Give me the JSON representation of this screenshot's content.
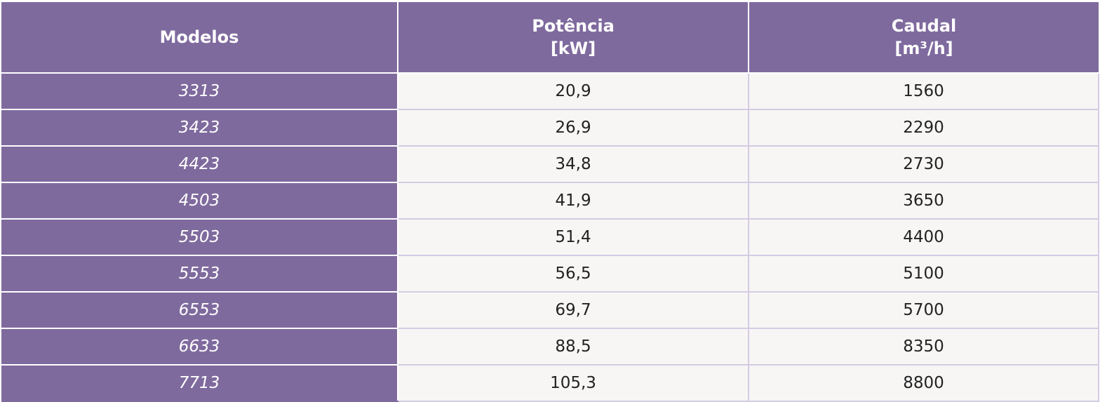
{
  "table": {
    "header": [
      {
        "title": "Modelos"
      },
      {
        "title": "Potência",
        "unit": "[kW]"
      },
      {
        "title": "Caudal",
        "unit": "[m³/h]"
      }
    ],
    "rows": [
      [
        "3313",
        "20,9",
        "1560"
      ],
      [
        "3423",
        "26,9",
        "2290"
      ],
      [
        "4423",
        "34,8",
        "2730"
      ],
      [
        "4503",
        "41,9",
        "3650"
      ],
      [
        "5503",
        "51,4",
        "4400"
      ],
      [
        "5553",
        "56,5",
        "5100"
      ],
      [
        "6553",
        "69,7",
        "5700"
      ],
      [
        "6633",
        "88,5",
        "8350"
      ],
      [
        "7713",
        "105,3",
        "8800"
      ]
    ]
  }
}
